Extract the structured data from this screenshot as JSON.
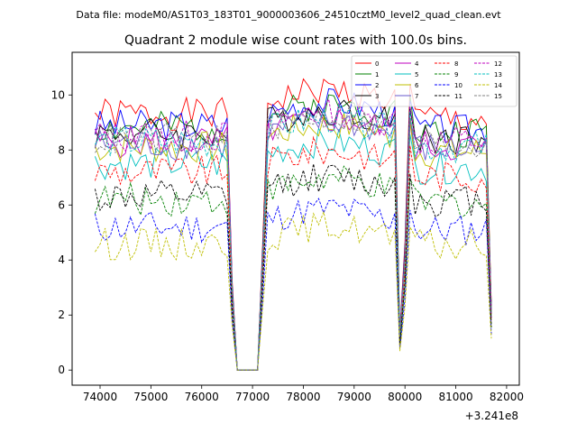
{
  "suptitle": "Data file: modeM0/AS1T03_183T01_9000003606_24510cztM0_level2_quad_clean.evt",
  "chart_data": {
    "type": "line",
    "title": "Quadrant 2 module wise count rates with 100.0s bins.",
    "xlabel": "",
    "ylabel": "",
    "x_offset_label": "+3.241e8",
    "x_offset": 324100000,
    "xlim": [
      73450,
      82250
    ],
    "ylim": [
      -0.55,
      11.55
    ],
    "xticks": [
      74000,
      75000,
      76000,
      77000,
      78000,
      79000,
      80000,
      81000,
      82000
    ],
    "yticks": [
      0,
      2,
      4,
      6,
      8,
      10
    ],
    "legend_loc": "top-right",
    "legend_columns": 4,
    "segments": [
      {
        "x0": 73900,
        "x1": 76500
      },
      {
        "x0": 76600,
        "x1": 76600
      },
      {
        "x0": 76700,
        "x1": 77100
      },
      {
        "x0": 77200,
        "x1": 77200
      },
      {
        "x0": 77300,
        "x1": 79700
      },
      {
        "x0": 79800,
        "x1": 79800
      },
      {
        "x0": 79900,
        "x1": 79900
      },
      {
        "x0": 80000,
        "x1": 80000
      },
      {
        "x0": 80100,
        "x1": 81600
      },
      {
        "x0": 81700,
        "x1": 81700
      }
    ],
    "series": [
      {
        "name": "0",
        "color": "#ff0000",
        "dash": "solid",
        "base": 9.3,
        "seed": 1,
        "high": 10.2,
        "low": 8.9
      },
      {
        "name": "1",
        "color": "#008000",
        "dash": "solid",
        "base": 8.8,
        "seed": 2,
        "high": 9.8,
        "low": 8.1
      },
      {
        "name": "2",
        "color": "#0000ff",
        "dash": "solid",
        "base": 8.9,
        "seed": 3,
        "high": 9.6,
        "low": 8.3
      },
      {
        "name": "3",
        "color": "#000000",
        "dash": "solid",
        "base": 8.6,
        "seed": 4,
        "high": 9.3,
        "low": 8.2
      },
      {
        "name": "4",
        "color": "#bf00bf",
        "dash": "solid",
        "base": 8.3,
        "seed": 5,
        "high": 9.0,
        "low": 7.9
      },
      {
        "name": "5",
        "color": "#00bfbf",
        "dash": "solid",
        "base": 7.5,
        "seed": 6,
        "high": 8.4,
        "low": 7.0
      },
      {
        "name": "6",
        "color": "#bfbf00",
        "dash": "solid",
        "base": 8.1,
        "seed": 7,
        "high": 8.8,
        "low": 7.6
      },
      {
        "name": "7",
        "color": "#6a5acd",
        "dash": "solid",
        "base": 8.2,
        "seed": 8,
        "high": 8.9,
        "low": 7.8
      },
      {
        "name": "8",
        "color": "#ff0000",
        "dash": "dashed",
        "base": 7.2,
        "seed": 9,
        "high": 8.0,
        "low": 7.0
      },
      {
        "name": "9",
        "color": "#008000",
        "dash": "dashed",
        "base": 6.2,
        "seed": 10,
        "high": 6.8,
        "low": 6.0
      },
      {
        "name": "10",
        "color": "#0000ff",
        "dash": "dashed",
        "base": 5.2,
        "seed": 11,
        "high": 5.7,
        "low": 4.9
      },
      {
        "name": "11",
        "color": "#000000",
        "dash": "dashed",
        "base": 6.3,
        "seed": 12,
        "high": 7.0,
        "low": 6.0
      },
      {
        "name": "12",
        "color": "#bf00bf",
        "dash": "dashed",
        "base": 8.5,
        "seed": 13,
        "high": 9.4,
        "low": 8.2
      },
      {
        "name": "13",
        "color": "#00bfbf",
        "dash": "dashed",
        "base": 8.3,
        "seed": 14,
        "high": 9.2,
        "low": 8.0
      },
      {
        "name": "14",
        "color": "#bfbf00",
        "dash": "dashed",
        "base": 4.6,
        "seed": 15,
        "high": 5.1,
        "low": 4.5
      },
      {
        "name": "15",
        "color": "#808080",
        "dash": "dashed",
        "base": 8.4,
        "seed": 16,
        "high": 9.0,
        "low": 8.1
      }
    ]
  }
}
